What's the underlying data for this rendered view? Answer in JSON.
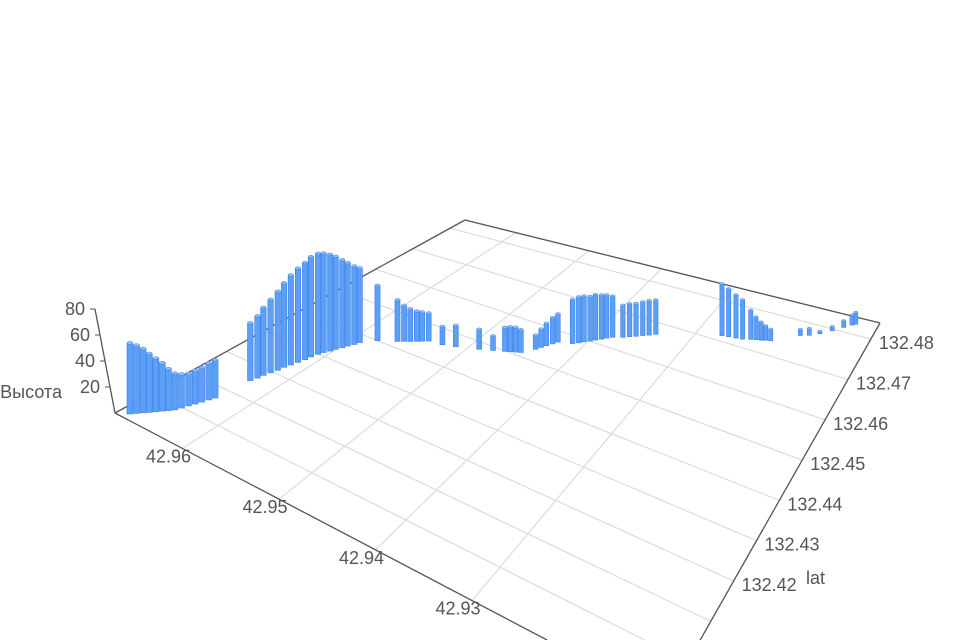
{
  "chart_data": {
    "type": "bar3d",
    "title": "",
    "x_axis": {
      "name": "",
      "ticks": [
        "42.93",
        "42.94",
        "42.95",
        "42.96"
      ],
      "range": [
        42.91,
        42.967
      ]
    },
    "y_axis": {
      "name": "lat",
      "ticks": [
        "132.42",
        "132.43",
        "132.44",
        "132.45",
        "132.46",
        "132.47",
        "132.48"
      ],
      "range": [
        132.39,
        132.484
      ]
    },
    "z_axis": {
      "name": "Высота",
      "ticks": [
        "20",
        "40",
        "60",
        "80"
      ],
      "range": [
        0,
        80
      ]
    },
    "grid": true,
    "bar_color": "#5b9ff7",
    "bars": [
      [
        42.9661,
        132.3917,
        55
      ],
      [
        42.9658,
        132.3927,
        53
      ],
      [
        42.9655,
        132.3937,
        50
      ],
      [
        42.9652,
        132.3946,
        46
      ],
      [
        42.9649,
        132.3956,
        42
      ],
      [
        42.9646,
        132.3966,
        38
      ],
      [
        42.9643,
        132.3975,
        33
      ],
      [
        42.964,
        132.3985,
        29
      ],
      [
        42.9638,
        132.3998,
        27
      ],
      [
        42.9636,
        132.4012,
        26
      ],
      [
        42.9634,
        132.4025,
        27
      ],
      [
        42.9632,
        132.4038,
        28
      ],
      [
        42.963,
        132.4052,
        30
      ],
      [
        42.9628,
        132.4065,
        31
      ],
      [
        42.9624,
        132.4152,
        48
      ],
      [
        42.9622,
        132.4167,
        52
      ],
      [
        42.9621,
        132.4181,
        57
      ],
      [
        42.9619,
        132.4196,
        62
      ],
      [
        42.9617,
        132.4211,
        67
      ],
      [
        42.9616,
        132.4226,
        72
      ],
      [
        42.9614,
        132.424,
        77
      ],
      [
        42.9612,
        132.4255,
        81
      ],
      [
        42.961,
        132.427,
        84
      ],
      [
        42.9609,
        132.4284,
        87
      ],
      [
        42.9607,
        132.4299,
        88
      ],
      [
        42.9605,
        132.431,
        87
      ],
      [
        42.9602,
        132.4321,
        85
      ],
      [
        42.96,
        132.4332,
        82
      ],
      [
        42.9597,
        132.4343,
        78
      ],
      [
        42.9595,
        132.4354,
        74
      ],
      [
        42.9592,
        132.4365,
        70
      ],
      [
        42.959,
        132.4376,
        67
      ],
      [
        42.9579,
        132.44,
        50
      ],
      [
        42.9563,
        132.4419,
        38
      ],
      [
        42.9558,
        132.4426,
        33
      ],
      [
        42.9553,
        132.4432,
        30
      ],
      [
        42.9548,
        132.4439,
        28
      ],
      [
        42.9544,
        132.4445,
        27
      ],
      [
        42.9539,
        132.4452,
        26
      ],
      [
        42.9524,
        132.4456,
        17
      ],
      [
        42.9511,
        132.4464,
        20
      ],
      [
        42.9489,
        132.448,
        19
      ],
      [
        42.9476,
        132.449,
        14
      ],
      [
        42.9465,
        132.4499,
        23
      ],
      [
        42.946,
        132.4503,
        24
      ],
      [
        42.9455,
        132.4507,
        24
      ],
      [
        42.945,
        132.4511,
        22
      ],
      [
        42.944,
        132.4532,
        14
      ],
      [
        42.9437,
        132.4542,
        18
      ],
      [
        42.9434,
        132.4551,
        22
      ],
      [
        42.943,
        132.4561,
        26
      ],
      [
        42.9427,
        132.457,
        28
      ],
      [
        42.9412,
        132.4579,
        44
      ],
      [
        42.9407,
        132.4586,
        46
      ],
      [
        42.9403,
        132.4593,
        46
      ],
      [
        42.9398,
        132.46,
        45
      ],
      [
        42.9394,
        132.4607,
        46
      ],
      [
        42.9389,
        132.4614,
        45
      ],
      [
        42.9385,
        132.4621,
        44
      ],
      [
        42.938,
        132.4628,
        42
      ],
      [
        42.937,
        132.4636,
        33
      ],
      [
        42.9364,
        132.4643,
        34
      ],
      [
        42.9358,
        132.4649,
        34
      ],
      [
        42.9352,
        132.4656,
        35
      ],
      [
        42.9346,
        132.4662,
        36
      ],
      [
        42.934,
        132.4669,
        36
      ],
      [
        42.927,
        132.4714,
        56
      ],
      [
        42.9262,
        132.4716,
        52
      ],
      [
        42.9253,
        132.4718,
        47
      ],
      [
        42.9245,
        132.472,
        43
      ],
      [
        42.9236,
        132.4725,
        32
      ],
      [
        42.923,
        132.4728,
        25
      ],
      [
        42.9224,
        132.473,
        20
      ],
      [
        42.9219,
        132.4733,
        16
      ],
      [
        42.9213,
        132.4735,
        13
      ],
      [
        42.9184,
        132.4766,
        7
      ],
      [
        42.9174,
        132.4772,
        8
      ],
      [
        42.9163,
        132.4782,
        3
      ],
      [
        42.9151,
        132.4796,
        5
      ],
      [
        42.914,
        132.481,
        8
      ],
      [
        42.9132,
        132.482,
        12
      ],
      [
        42.9128,
        132.4824,
        14
      ]
    ]
  }
}
